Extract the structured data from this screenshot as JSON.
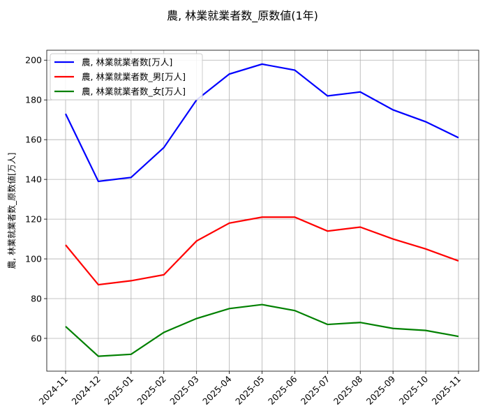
{
  "chart_data": {
    "type": "line",
    "title": "農, 林業就業者数_原数値(1年)",
    "xlabel": "",
    "ylabel": "農, 林業就業者数_原数値[万人]",
    "categories": [
      "2024-11",
      "2024-12",
      "2025-01",
      "2025-02",
      "2025-03",
      "2025-04",
      "2025-05",
      "2025-06",
      "2025-07",
      "2025-08",
      "2025-09",
      "2025-10",
      "2025-11"
    ],
    "yticks": [
      60,
      80,
      100,
      120,
      140,
      160,
      180,
      200
    ],
    "ylim": [
      43.5,
      205
    ],
    "grid": true,
    "legend_position": "top-left",
    "series": [
      {
        "name": "農, 林業就業者数[万人]",
        "color": "#0000ff",
        "values": [
          173,
          139,
          141,
          156,
          180,
          193,
          198,
          195,
          182,
          184,
          175,
          169,
          161
        ]
      },
      {
        "name": "農, 林業就業者数_男[万人]",
        "color": "#ff0000",
        "values": [
          107,
          87,
          89,
          92,
          109,
          118,
          121,
          121,
          114,
          116,
          110,
          105,
          99
        ]
      },
      {
        "name": "農, 林業就業者数_女[万人]",
        "color": "#008000",
        "values": [
          66,
          51,
          52,
          63,
          70,
          75,
          77,
          74,
          67,
          68,
          65,
          64,
          61
        ]
      }
    ]
  }
}
